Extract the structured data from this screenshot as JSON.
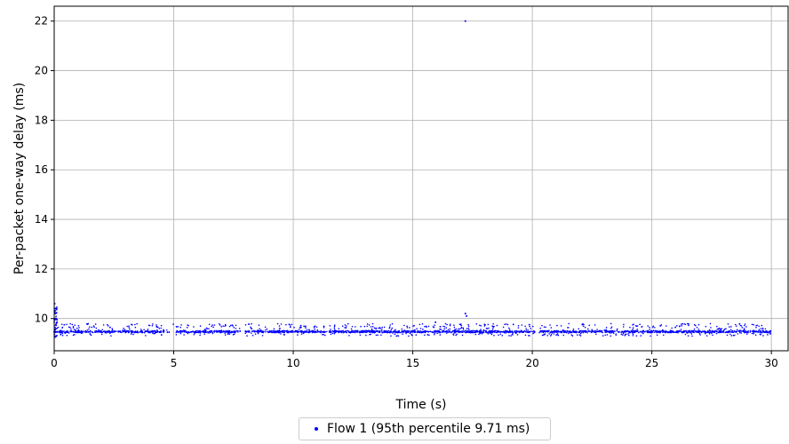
{
  "chart_data": {
    "type": "scatter",
    "title": "",
    "xlabel": "Time (s)",
    "ylabel": "Per-packet one-way delay (ms)",
    "xlim": [
      0,
      30.7
    ],
    "ylim": [
      8.7,
      22.6
    ],
    "xticks": [
      0,
      5,
      10,
      15,
      20,
      25,
      30
    ],
    "yticks": [
      10,
      12,
      14,
      16,
      18,
      20,
      22
    ],
    "grid": true,
    "legend_position": "below",
    "series": [
      {
        "name": "Flow 1 (95th percentile 9.71 ms)",
        "color": "#0000ff",
        "baseline_ms": 9.47,
        "typical_range_ms": [
          9.3,
          9.8
        ],
        "outliers": [
          {
            "x": 0.02,
            "y": 10.6
          },
          {
            "x": 0.03,
            "y": 10.4
          },
          {
            "x": 0.04,
            "y": 10.2
          },
          {
            "x": 0.05,
            "y": 10.0
          },
          {
            "x": 17.2,
            "y": 22.0
          },
          {
            "x": 17.2,
            "y": 10.2
          },
          {
            "x": 17.25,
            "y": 10.1
          },
          {
            "x": 15.95,
            "y": 9.85
          }
        ]
      }
    ]
  }
}
